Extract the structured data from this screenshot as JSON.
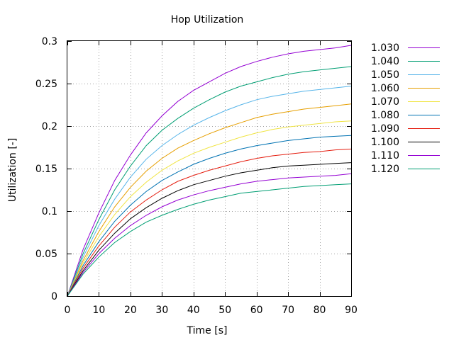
{
  "chart_data": {
    "type": "line",
    "title": "Hop Utilization",
    "xlabel": "Time [s]",
    "ylabel": "Utilization [-]",
    "xlim": [
      0,
      90
    ],
    "ylim": [
      0,
      0.3
    ],
    "xticks": [
      0,
      10,
      20,
      30,
      40,
      50,
      60,
      70,
      80,
      90
    ],
    "yticks": [
      0,
      0.05,
      0.1,
      0.15,
      0.2,
      0.25,
      0.3
    ],
    "xtick_labels": [
      "0",
      "10",
      "20",
      "30",
      "40",
      "50",
      "60",
      "70",
      "80",
      "90"
    ],
    "ytick_labels": [
      "0",
      "0.05",
      "0.1",
      "0.15",
      "0.2",
      "0.25",
      "0.3"
    ],
    "grid": true,
    "legend_position": "right-outside",
    "x": [
      0,
      5,
      10,
      15,
      20,
      25,
      30,
      35,
      40,
      45,
      50,
      55,
      60,
      65,
      70,
      75,
      80,
      85,
      90
    ],
    "series": [
      {
        "name": "1.030",
        "color": "#9400d3",
        "values": [
          0,
          0.055,
          0.098,
          0.136,
          0.166,
          0.192,
          0.212,
          0.229,
          0.242,
          0.252,
          0.262,
          0.27,
          0.276,
          0.281,
          0.285,
          0.288,
          0.29,
          0.292,
          0.295
        ]
      },
      {
        "name": "1.040",
        "color": "#009e73",
        "values": [
          0,
          0.05,
          0.09,
          0.125,
          0.153,
          0.177,
          0.195,
          0.209,
          0.221,
          0.231,
          0.24,
          0.247,
          0.252,
          0.257,
          0.261,
          0.264,
          0.266,
          0.268,
          0.27
        ]
      },
      {
        "name": "1.050",
        "color": "#56b4e9",
        "values": [
          0,
          0.046,
          0.083,
          0.114,
          0.14,
          0.161,
          0.177,
          0.19,
          0.201,
          0.21,
          0.218,
          0.225,
          0.231,
          0.235,
          0.238,
          0.241,
          0.243,
          0.245,
          0.247
        ]
      },
      {
        "name": "1.060",
        "color": "#e69f00",
        "values": [
          0,
          0.042,
          0.076,
          0.105,
          0.128,
          0.147,
          0.162,
          0.174,
          0.183,
          0.191,
          0.198,
          0.204,
          0.21,
          0.214,
          0.217,
          0.22,
          0.222,
          0.224,
          0.226
        ]
      },
      {
        "name": "1.070",
        "color": "#f0e442",
        "values": [
          0,
          0.039,
          0.07,
          0.096,
          0.117,
          0.134,
          0.148,
          0.159,
          0.168,
          0.175,
          0.181,
          0.187,
          0.192,
          0.196,
          0.199,
          0.201,
          0.203,
          0.205,
          0.206
        ]
      },
      {
        "name": "1.080",
        "color": "#0072b2",
        "values": [
          0,
          0.036,
          0.064,
          0.088,
          0.107,
          0.123,
          0.136,
          0.146,
          0.155,
          0.162,
          0.168,
          0.173,
          0.177,
          0.18,
          0.183,
          0.185,
          0.187,
          0.188,
          0.189
        ]
      },
      {
        "name": "1.090",
        "color": "#e51e10",
        "values": [
          0,
          0.033,
          0.059,
          0.081,
          0.099,
          0.113,
          0.125,
          0.135,
          0.142,
          0.148,
          0.153,
          0.158,
          0.162,
          0.165,
          0.167,
          0.169,
          0.17,
          0.172,
          0.173
        ]
      },
      {
        "name": "1.100",
        "color": "#000000",
        "values": [
          0,
          0.03,
          0.054,
          0.074,
          0.091,
          0.104,
          0.115,
          0.124,
          0.131,
          0.136,
          0.141,
          0.145,
          0.148,
          0.151,
          0.153,
          0.154,
          0.155,
          0.156,
          0.157
        ]
      },
      {
        "name": "1.110",
        "color": "#9400d3",
        "values": [
          0,
          0.028,
          0.05,
          0.068,
          0.083,
          0.095,
          0.105,
          0.113,
          0.119,
          0.124,
          0.128,
          0.132,
          0.135,
          0.137,
          0.139,
          0.14,
          0.141,
          0.142,
          0.144
        ]
      },
      {
        "name": "1.120",
        "color": "#009e73",
        "values": [
          0,
          0.026,
          0.046,
          0.063,
          0.076,
          0.087,
          0.095,
          0.102,
          0.108,
          0.113,
          0.117,
          0.121,
          0.123,
          0.125,
          0.127,
          0.129,
          0.13,
          0.131,
          0.132
        ]
      }
    ]
  }
}
